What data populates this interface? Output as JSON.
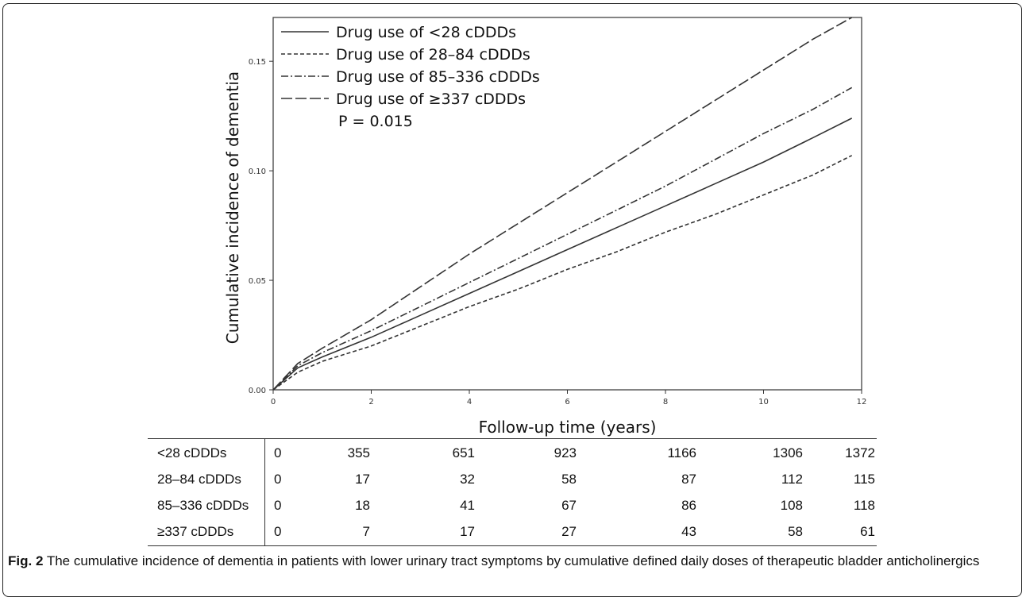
{
  "chart_data": {
    "type": "line",
    "title": "",
    "xlabel": "Follow-up time (years)",
    "ylabel": "Cumulative incidence of dementia",
    "xlim": [
      0,
      12
    ],
    "ylim": [
      0,
      0.17
    ],
    "x_ticks": [
      0,
      2,
      4,
      6,
      8,
      10,
      12
    ],
    "x_tick_labels": [
      "0",
      "2",
      "4",
      "6",
      "8",
      "10",
      "12"
    ],
    "y_ticks": [
      0.0,
      0.05,
      0.1,
      0.15
    ],
    "y_tick_labels": [
      "0.00",
      "0.05",
      "0.10",
      "0.15"
    ],
    "grid": false,
    "legend_position": "top-left",
    "annotation": "P = 0.015",
    "series": [
      {
        "name": "Drug use of <28 cDDDs",
        "dash": "solid",
        "x": [
          0,
          0.5,
          1,
          2,
          3,
          4,
          5,
          6,
          7,
          8,
          9,
          10,
          11,
          11.8
        ],
        "y": [
          0,
          0.01,
          0.015,
          0.024,
          0.034,
          0.044,
          0.054,
          0.064,
          0.074,
          0.084,
          0.094,
          0.104,
          0.115,
          0.124
        ]
      },
      {
        "name": "Drug use of 28–84 cDDDs",
        "dash": "dashed",
        "x": [
          0,
          0.5,
          1,
          2,
          3,
          4,
          5,
          6,
          7,
          8,
          9,
          10,
          11,
          11.8
        ],
        "y": [
          0,
          0.008,
          0.013,
          0.02,
          0.029,
          0.038,
          0.046,
          0.055,
          0.063,
          0.072,
          0.08,
          0.089,
          0.098,
          0.107
        ]
      },
      {
        "name": "Drug use of 85–336 cDDDs",
        "dash": "dash-dot",
        "x": [
          0,
          0.5,
          1,
          2,
          3,
          4,
          5,
          6,
          7,
          8,
          9,
          10,
          11,
          11.8
        ],
        "y": [
          0,
          0.011,
          0.017,
          0.027,
          0.038,
          0.049,
          0.06,
          0.071,
          0.082,
          0.093,
          0.105,
          0.117,
          0.128,
          0.138
        ]
      },
      {
        "name": "Drug use of ≥337 cDDDs",
        "dash": "long-dash",
        "x": [
          0,
          0.5,
          1,
          2,
          3,
          4,
          5,
          6,
          7,
          8,
          9,
          10,
          11,
          11.8
        ],
        "y": [
          0,
          0.012,
          0.019,
          0.032,
          0.047,
          0.062,
          0.076,
          0.09,
          0.104,
          0.118,
          0.132,
          0.146,
          0.16,
          0.17
        ]
      }
    ]
  },
  "risk_table": {
    "rows": [
      {
        "label": "<28 cDDDs",
        "values": [
          "0",
          "355",
          "651",
          "923",
          "1166",
          "1306",
          "1372"
        ]
      },
      {
        "label": "28–84 cDDDs",
        "values": [
          "0",
          "17",
          "32",
          "58",
          "87",
          "112",
          "115"
        ]
      },
      {
        "label": "85–336 cDDDs",
        "values": [
          "0",
          "18",
          "41",
          "67",
          "86",
          "108",
          "118"
        ]
      },
      {
        "label": "≥337 cDDDs",
        "values": [
          "0",
          "7",
          "17",
          "27",
          "43",
          "58",
          "61"
        ]
      }
    ]
  },
  "caption": {
    "label": "Fig. 2",
    "text": " The cumulative incidence of dementia in patients with lower urinary tract symptoms by cumulative defined daily doses of therapeutic bladder anticholinergics"
  }
}
